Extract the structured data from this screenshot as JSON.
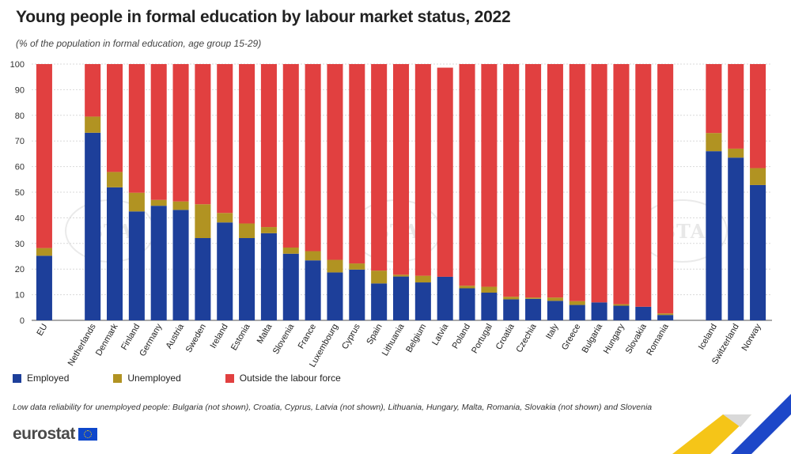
{
  "header": {
    "title": "Young people in formal education by labour market status, 2022",
    "subtitle": "(% of the population in formal education, age group 15-29)"
  },
  "legend": {
    "employed": "Employed",
    "unemployed": "Unemployed",
    "outside": "Outside the labour force"
  },
  "footnote": "Low data reliability for unemployed people: Bulgaria (not shown), Croatia, Cyprus, Latvia (not shown), Lithuania, Hungary, Malta, Romania, Slovakia (not shown) and Slovenia",
  "brand": {
    "name": "eurostat"
  },
  "watermark": {
    "text": "BTA"
  },
  "colors": {
    "employed": "#1d3f9a",
    "unemployed": "#b19322",
    "outside": "#e14040",
    "grid": "#d9d9d9",
    "axis": "#555555"
  },
  "chart_data": {
    "type": "bar",
    "stacked": true,
    "title": "Young people in formal education by labour market status, 2022",
    "subtitle": "(% of the population in formal education, age group 15-29)",
    "xlabel": "",
    "ylabel": "",
    "ylim": [
      0,
      100
    ],
    "yticks": [
      0,
      10,
      20,
      30,
      40,
      50,
      60,
      70,
      80,
      90,
      100
    ],
    "grid": true,
    "legend_position": "bottom-left",
    "groups": [
      [
        "EU"
      ],
      [
        "Netherlands",
        "Denmark",
        "Finland",
        "Germany",
        "Austria",
        "Sweden",
        "Ireland",
        "Estonia",
        "Malta",
        "Slovenia",
        "France",
        "Luxembourg",
        "Cyprus",
        "Spain",
        "Lithuania",
        "Belgium",
        "Latvia",
        "Poland",
        "Portugal",
        "Croatia",
        "Czechia",
        "Italy",
        "Greece",
        "Bulgaria",
        "Hungary",
        "Slovakia",
        "Romania"
      ],
      [
        "Iceland",
        "Switzerland",
        "Norway"
      ]
    ],
    "categories": [
      "EU",
      "Netherlands",
      "Denmark",
      "Finland",
      "Germany",
      "Austria",
      "Sweden",
      "Ireland",
      "Estonia",
      "Malta",
      "Slovenia",
      "France",
      "Luxembourg",
      "Cyprus",
      "Spain",
      "Lithuania",
      "Belgium",
      "Latvia",
      "Poland",
      "Portugal",
      "Croatia",
      "Czechia",
      "Italy",
      "Greece",
      "Bulgaria",
      "Hungary",
      "Slovakia",
      "Romania",
      "Iceland",
      "Switzerland",
      "Norway"
    ],
    "series": [
      {
        "name": "Employed",
        "values": [
          25.2,
          73.2,
          51.9,
          42.5,
          44.7,
          43.1,
          32.1,
          38.2,
          32.1,
          34.0,
          26.0,
          23.4,
          18.7,
          19.8,
          14.4,
          17.1,
          14.8,
          17.0,
          12.5,
          10.8,
          8.2,
          8.4,
          7.6,
          6.0,
          7.0,
          5.7,
          5.3,
          2.1,
          66.0,
          63.5,
          52.8
        ]
      },
      {
        "name": "Unemployed",
        "values": [
          3.0,
          6.3,
          6.0,
          7.3,
          2.3,
          3.3,
          13.2,
          3.7,
          5.7,
          2.4,
          2.4,
          3.6,
          4.9,
          2.4,
          5.0,
          0.7,
          2.6,
          0.0,
          1.0,
          2.3,
          1.0,
          0.5,
          1.3,
          1.5,
          0.0,
          0.6,
          0.0,
          0.6,
          7.1,
          3.5,
          6.6
        ]
      },
      {
        "name": "Outside the labour force",
        "values": [
          71.8,
          20.5,
          42.1,
          50.2,
          53.0,
          53.6,
          54.7,
          58.1,
          62.2,
          63.6,
          71.6,
          73.0,
          76.4,
          77.8,
          80.6,
          82.2,
          82.6,
          81.6,
          86.5,
          86.9,
          90.8,
          91.1,
          91.1,
          92.5,
          93.0,
          93.7,
          94.7,
          97.3,
          26.9,
          33.0,
          40.6
        ]
      }
    ]
  }
}
